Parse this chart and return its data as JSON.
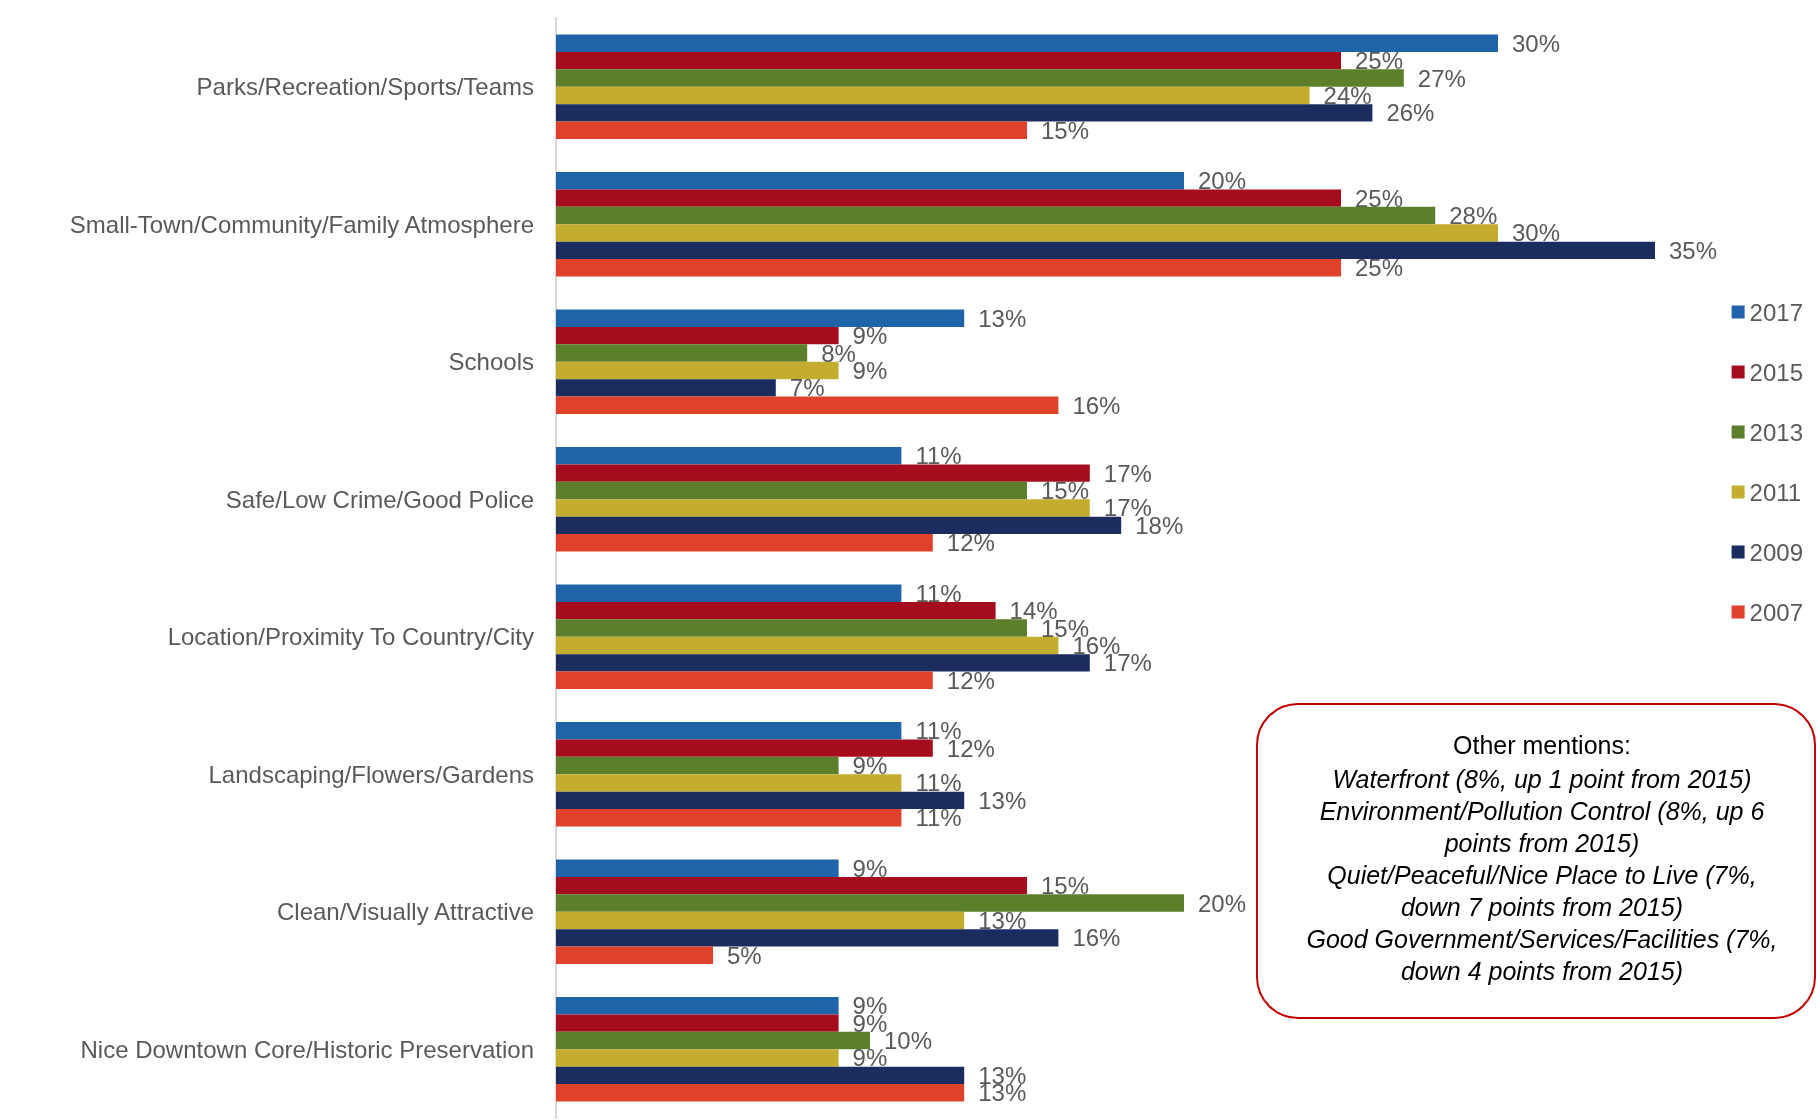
{
  "chart_data": {
    "type": "bar",
    "orientation": "horizontal",
    "tick_labels": "y",
    "legend": "right",
    "categories": [
      "Parks/Recreation/Sports/Teams",
      "Small-Town/Community/Family Atmosphere",
      "Schools",
      "Safe/Low Crime/Good Police",
      "Location/Proximity To Country/City",
      "Landscaping/Flowers/Gardens",
      "Clean/Visually Attractive",
      "Nice Downtown Core/Historic Preservation"
    ],
    "series": [
      {
        "name": "2017",
        "color": "#1f64a8",
        "values": [
          30,
          20,
          13,
          11,
          11,
          11,
          9,
          9
        ],
        "value_labels": [
          "30%",
          "20%",
          "13%",
          "11%",
          "11%",
          "11%",
          "9%",
          "9%"
        ]
      },
      {
        "name": "2015",
        "color": "#a50d1e",
        "values": [
          25,
          25,
          9,
          17,
          14,
          12,
          15,
          9
        ],
        "value_labels": [
          "25%",
          "25%",
          "9%",
          "17%",
          "14%",
          "12%",
          "15%",
          "9%"
        ]
      },
      {
        "name": "2013",
        "color": "#5b7f2a",
        "values": [
          27,
          28,
          8,
          15,
          15,
          9,
          20,
          10
        ],
        "value_labels": [
          "27%",
          "28%",
          "8%",
          "15%",
          "15%",
          "9%",
          "20%",
          "10%"
        ]
      },
      {
        "name": "2011",
        "color": "#c4ac2f",
        "values": [
          24,
          30,
          9,
          17,
          16,
          11,
          13,
          9
        ],
        "value_labels": [
          "24%",
          "30%",
          "9%",
          "17%",
          "16%",
          "11%",
          "13%",
          "9%"
        ]
      },
      {
        "name": "2009",
        "color": "#1a2d5e",
        "values": [
          26,
          35,
          7,
          18,
          17,
          13,
          16,
          13
        ],
        "value_labels": [
          "26%",
          "35%",
          "7%",
          "18%",
          "17%",
          "13%",
          "16%",
          "13%"
        ]
      },
      {
        "name": "2007",
        "color": "#e0412a",
        "values": [
          15,
          25,
          16,
          12,
          12,
          11,
          5,
          13
        ],
        "value_labels": [
          "15%",
          "25%",
          "16%",
          "12%",
          "12%",
          "11%",
          "5%",
          "13%"
        ]
      }
    ],
    "annotations": [
      "Other mentions:",
      "Waterfront (8%, up 1 point from 2015)",
      "Environment/Pollution Control (8%, up 6 points from 2015)",
      "Quiet/Peaceful/Nice Place to Live (7%, down 7 points from 2015)",
      "Good Government/Services/Facilities (7%, down 4 points from 2015)"
    ]
  }
}
